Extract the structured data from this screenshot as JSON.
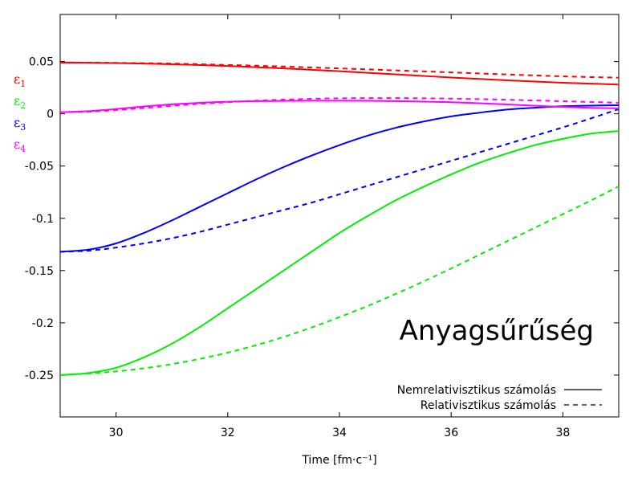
{
  "chart_data": {
    "type": "line",
    "title": "",
    "annotation": "Anyagsűrűség",
    "xlabel": "Time [fm·c⁻¹]",
    "ylabel": "",
    "xlim": [
      29,
      39
    ],
    "ylim": [
      -0.29,
      0.095
    ],
    "xticks": [
      30,
      32,
      34,
      36,
      38
    ],
    "yticks": [
      0.05,
      0,
      -0.05,
      -0.1,
      -0.15,
      -0.2,
      -0.25
    ],
    "ytick_labels": [
      "0.05",
      "0",
      "-0.05",
      "-0.1",
      "-0.15",
      "-0.2",
      "-0.25"
    ],
    "grid": false,
    "legend_placement": "bottom-right",
    "legend": [
      {
        "label": "Nemrelativisztikus számolás",
        "style": "solid"
      },
      {
        "label": "Relativisztikus számolás",
        "style": "dashed"
      }
    ],
    "variable_labels": [
      {
        "symbol": "ε",
        "sub": "1",
        "color": "#ff0000"
      },
      {
        "symbol": "ε",
        "sub": "2",
        "color": "#00ee00"
      },
      {
        "symbol": "ε",
        "sub": "3",
        "color": "#0000ff"
      },
      {
        "symbol": "ε",
        "sub": "4",
        "color": "#ff00ff"
      }
    ],
    "x": [
      29,
      29.5,
      30,
      30.5,
      31,
      31.5,
      32,
      32.5,
      33,
      33.5,
      34,
      34.5,
      35,
      35.5,
      36,
      36.5,
      37,
      37.5,
      38,
      38.5,
      39
    ],
    "series": [
      {
        "variable": "ε1",
        "style": "solid",
        "color": "#ff0000",
        "values": [
          0.049,
          0.0488,
          0.0485,
          0.048,
          0.0474,
          0.0466,
          0.0457,
          0.0446,
          0.0434,
          0.0421,
          0.0407,
          0.0392,
          0.0377,
          0.0362,
          0.0347,
          0.0333,
          0.032,
          0.0308,
          0.0297,
          0.0288,
          0.028
        ]
      },
      {
        "variable": "ε1",
        "style": "dashed",
        "color": "#ff0000",
        "values": [
          0.049,
          0.0489,
          0.0487,
          0.0484,
          0.048,
          0.0474,
          0.0467,
          0.046,
          0.0452,
          0.0443,
          0.0434,
          0.0425,
          0.0415,
          0.0406,
          0.0396,
          0.0386,
          0.0376,
          0.0367,
          0.0358,
          0.0351,
          0.0345
        ]
      },
      {
        "variable": "ε2",
        "style": "solid",
        "color": "#00ee00",
        "values": [
          -0.25,
          -0.248,
          -0.243,
          -0.233,
          -0.22,
          -0.204,
          -0.186,
          -0.168,
          -0.15,
          -0.132,
          -0.114,
          -0.098,
          -0.083,
          -0.07,
          -0.058,
          -0.047,
          -0.038,
          -0.03,
          -0.024,
          -0.019,
          -0.0165
        ]
      },
      {
        "variable": "ε2",
        "style": "dashed",
        "color": "#00ee00",
        "values": [
          -0.25,
          -0.2485,
          -0.2465,
          -0.2435,
          -0.2395,
          -0.2345,
          -0.2285,
          -0.2215,
          -0.2135,
          -0.2045,
          -0.1945,
          -0.184,
          -0.1725,
          -0.1605,
          -0.148,
          -0.135,
          -0.122,
          -0.109,
          -0.096,
          -0.083,
          -0.0695
        ]
      },
      {
        "variable": "ε3",
        "style": "solid",
        "color": "#0000ff",
        "values": [
          -0.132,
          -0.13,
          -0.124,
          -0.114,
          -0.102,
          -0.089,
          -0.076,
          -0.063,
          -0.051,
          -0.04,
          -0.03,
          -0.021,
          -0.0135,
          -0.0075,
          -0.0025,
          0.001,
          0.004,
          0.0058,
          0.0072,
          0.0078,
          0.0082
        ]
      },
      {
        "variable": "ε3",
        "style": "dashed",
        "color": "#0000ff",
        "values": [
          -0.132,
          -0.131,
          -0.128,
          -0.124,
          -0.119,
          -0.113,
          -0.106,
          -0.099,
          -0.092,
          -0.085,
          -0.077,
          -0.069,
          -0.061,
          -0.053,
          -0.045,
          -0.037,
          -0.029,
          -0.021,
          -0.013,
          -0.0045,
          0.0045
        ]
      },
      {
        "variable": "ε4",
        "style": "solid",
        "color": "#ff00ff",
        "values": [
          0.0015,
          0.0025,
          0.0045,
          0.007,
          0.009,
          0.0105,
          0.0115,
          0.012,
          0.0123,
          0.0125,
          0.0125,
          0.0124,
          0.0121,
          0.0116,
          0.011,
          0.0101,
          0.0089,
          0.0077,
          0.0065,
          0.0057,
          0.0052
        ]
      },
      {
        "variable": "ε4",
        "style": "dashed",
        "color": "#ff00ff",
        "values": [
          0.0015,
          0.002,
          0.0035,
          0.0055,
          0.0075,
          0.0095,
          0.011,
          0.0125,
          0.0135,
          0.0143,
          0.0148,
          0.015,
          0.015,
          0.0148,
          0.0145,
          0.014,
          0.0134,
          0.0127,
          0.012,
          0.0113,
          0.0105
        ]
      }
    ]
  }
}
